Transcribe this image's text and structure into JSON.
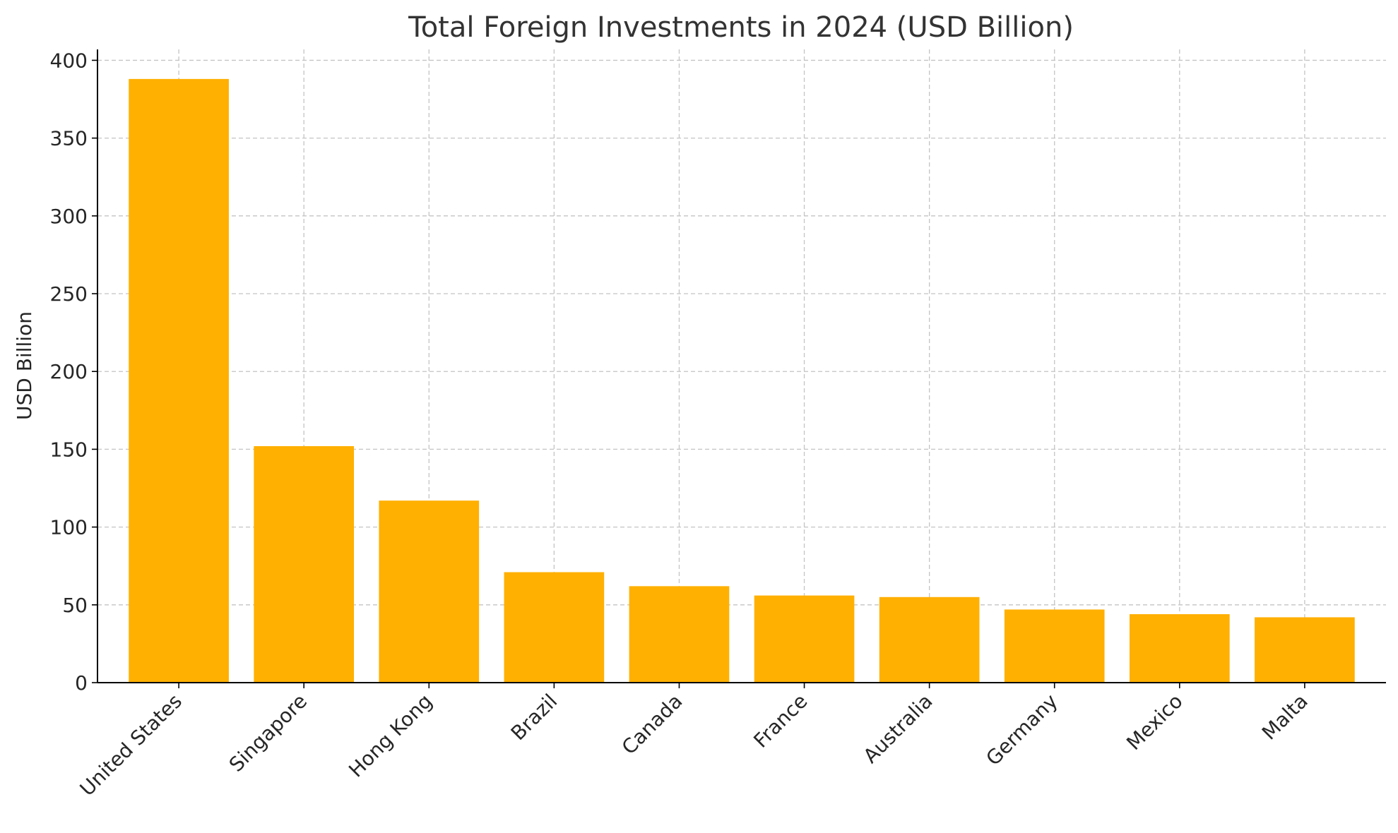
{
  "chart_data": {
    "type": "bar",
    "title": "Total Foreign Investments in 2024 (USD Billion)",
    "xlabel": "",
    "ylabel": "USD Billion",
    "categories": [
      "United States",
      "Singapore",
      "Hong Kong",
      "Brazil",
      "Canada",
      "France",
      "Australia",
      "Germany",
      "Mexico",
      "Malta"
    ],
    "values": [
      388,
      152,
      117,
      71,
      62,
      56,
      55,
      47,
      44,
      42
    ],
    "ylim": [
      0,
      407
    ],
    "yticks": [
      0,
      50,
      100,
      150,
      200,
      250,
      300,
      350,
      400
    ],
    "grid": true,
    "bar_color": "#ffb000"
  }
}
